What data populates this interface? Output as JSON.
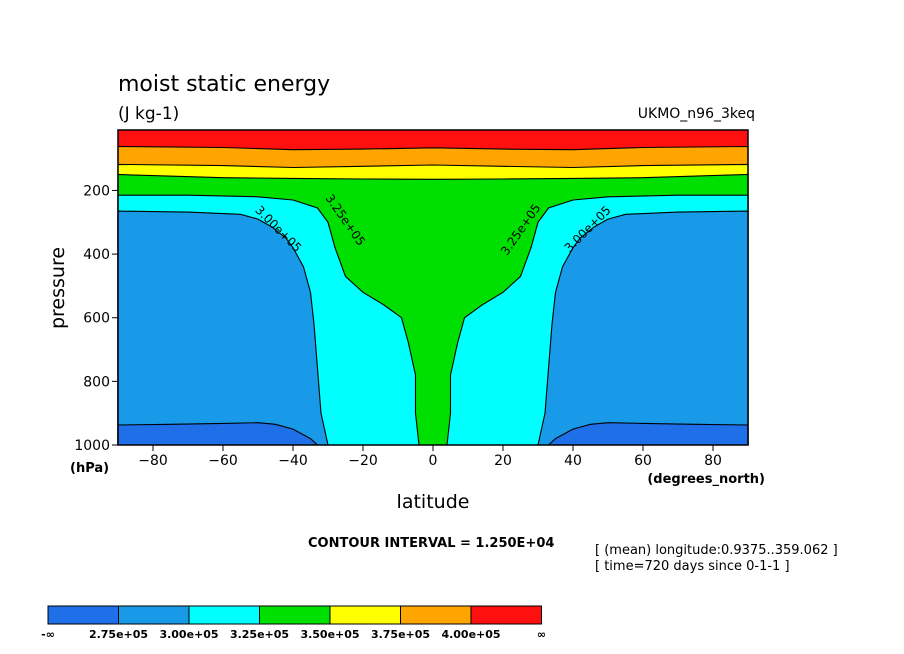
{
  "chart_data": {
    "type": "contour",
    "title": "moist static energy",
    "units": "(J kg-1)",
    "model": "UKMO_n96_3keq",
    "xlabel": "latitude",
    "xunits": "(degrees_north)",
    "ylabel": "pressure",
    "yunits": "(hPa)",
    "xlim": [
      -90,
      90
    ],
    "ylim": [
      1000,
      10
    ],
    "y_inverted": true,
    "x_ticks": [
      "-80",
      "-60",
      "-40",
      "-20",
      "0",
      "20",
      "40",
      "60",
      "80"
    ],
    "y_ticks": [
      "200",
      "400",
      "600",
      "800",
      "1000"
    ],
    "contour_interval_label": "CONTOUR INTERVAL = 1.250E+04",
    "contour_interval": 12500,
    "meta_lines": [
      "[ (mean) longitude:0.9375..359.062 ]",
      "[ time=720 days since 0-1-1 ]"
    ],
    "contour_labels": [
      "3.00e+05",
      "3.25e+05",
      "3.25e+05",
      "3.00e+05"
    ],
    "colorbar": {
      "colors": [
        "#1f6fe8",
        "#189ae8",
        "#00ffff",
        "#00e000",
        "#ffff00",
        "#ffa500",
        "#ff1010"
      ],
      "labels": [
        "-∞",
        "2.75e+05",
        "3.00e+05",
        "3.25e+05",
        "3.50e+05",
        "3.75e+05",
        "4.00e+05",
        "∞"
      ]
    },
    "levels": [
      {
        "name": "<2.75e+05",
        "color": "#1f6fe8",
        "profile": [
          [
            -90,
            937
          ],
          [
            -75,
            935
          ],
          [
            -60,
            932
          ],
          [
            -50,
            930
          ],
          [
            -45,
            935
          ],
          [
            -40,
            950
          ],
          [
            -35,
            980
          ],
          [
            -33,
            1000
          ]
        ]
      },
      {
        "name": "2.75e+05-3.00e+05",
        "color": "#189ae8",
        "profile": [
          [
            -90,
            265
          ],
          [
            -70,
            268
          ],
          [
            -55,
            275
          ],
          [
            -50,
            290
          ],
          [
            -46,
            315
          ],
          [
            -42,
            350
          ],
          [
            -40,
            380
          ],
          [
            -37,
            440
          ],
          [
            -35,
            520
          ],
          [
            -34,
            620
          ],
          [
            -33,
            760
          ],
          [
            -32,
            900
          ],
          [
            -30,
            1000
          ]
        ]
      },
      {
        "name": "3.00e+05-3.25e+05",
        "color": "#00ffff",
        "profile": [
          [
            -90,
            215
          ],
          [
            -70,
            215
          ],
          [
            -50,
            220
          ],
          [
            -40,
            230
          ],
          [
            -33,
            255
          ],
          [
            -30,
            300
          ],
          [
            -28,
            380
          ],
          [
            -25,
            470
          ],
          [
            -20,
            520
          ],
          [
            -14,
            560
          ],
          [
            -9,
            600
          ],
          [
            -7,
            680
          ],
          [
            -5,
            780
          ],
          [
            -5,
            900
          ],
          [
            -4,
            1000
          ]
        ]
      },
      {
        "name": "3.25e+05-3.50e+05",
        "color": "#00e000",
        "profile": [
          [
            -90,
            150
          ],
          [
            -60,
            160
          ],
          [
            -40,
            162
          ],
          [
            -20,
            164
          ],
          [
            0,
            165
          ]
        ]
      },
      {
        "name": "3.50e+05-3.75e+05",
        "color": "#ffff00",
        "profile": [
          [
            -90,
            118
          ],
          [
            -60,
            122
          ],
          [
            -40,
            128
          ],
          [
            -20,
            124
          ],
          [
            0,
            120
          ]
        ]
      },
      {
        "name": "3.75e+05-4.00e+05",
        "color": "#ffa500",
        "profile": [
          [
            -90,
            62
          ],
          [
            -60,
            65
          ],
          [
            -40,
            72
          ],
          [
            -20,
            70
          ],
          [
            0,
            66
          ]
        ]
      },
      {
        "name": ">4.00e+05",
        "color": "#ff1010",
        "profile": [
          [
            -90,
            28
          ],
          [
            -60,
            30
          ],
          [
            -40,
            34
          ],
          [
            -20,
            33
          ],
          [
            0,
            30
          ]
        ]
      }
    ]
  }
}
